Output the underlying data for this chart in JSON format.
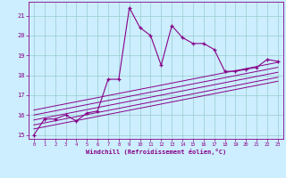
{
  "xlabel": "Windchill (Refroidissement éolien,°C)",
  "ylabel": "",
  "xlim": [
    -0.5,
    23.5
  ],
  "ylim": [
    14.8,
    21.7
  ],
  "yticks": [
    15,
    16,
    17,
    18,
    19,
    20,
    21
  ],
  "xticks": [
    0,
    1,
    2,
    3,
    4,
    5,
    6,
    7,
    8,
    9,
    10,
    11,
    12,
    13,
    14,
    15,
    16,
    17,
    18,
    19,
    20,
    21,
    22,
    23
  ],
  "main_line_x": [
    0,
    1,
    2,
    3,
    4,
    5,
    6,
    7,
    8,
    9,
    10,
    11,
    12,
    13,
    14,
    15,
    16,
    17,
    18,
    19,
    20,
    21,
    22,
    23
  ],
  "main_line_y": [
    15.0,
    15.8,
    15.8,
    16.0,
    15.7,
    16.1,
    16.2,
    17.8,
    17.8,
    21.4,
    20.4,
    20.0,
    18.5,
    20.5,
    19.9,
    19.6,
    19.6,
    19.3,
    18.2,
    18.2,
    18.3,
    18.4,
    18.8,
    18.7
  ],
  "linear_lines": [
    {
      "x": [
        0,
        23
      ],
      "y": [
        15.3,
        17.7
      ]
    },
    {
      "x": [
        0,
        23
      ],
      "y": [
        15.5,
        17.9
      ]
    },
    {
      "x": [
        0,
        23
      ],
      "y": [
        15.75,
        18.15
      ]
    },
    {
      "x": [
        0,
        23
      ],
      "y": [
        16.0,
        18.4
      ]
    },
    {
      "x": [
        0,
        23
      ],
      "y": [
        16.25,
        18.65
      ]
    }
  ],
  "line_color": "#880088",
  "bg_color": "#cceeff",
  "grid_color": "#99cccc"
}
